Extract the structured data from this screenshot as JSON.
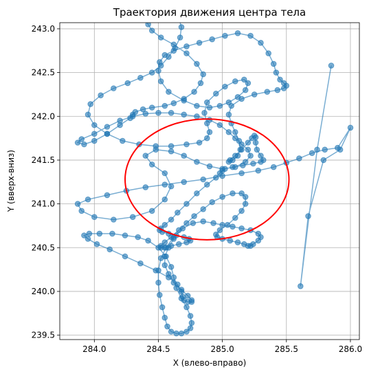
{
  "chart_data": {
    "type": "scatter",
    "title": "Траектория движения центра тела",
    "xlabel": "X (влево-вправо)",
    "ylabel": "Y (вверх-вниз)",
    "xlim": [
      283.73,
      286.07
    ],
    "ylim": [
      239.45,
      243.07
    ],
    "xticks": [
      "284.0",
      "284.5",
      "285.0",
      "285.5",
      "286.0"
    ],
    "yticks": [
      "239.5",
      "240.0",
      "240.5",
      "241.0",
      "241.5",
      "242.0",
      "242.5",
      "243.0"
    ],
    "grid": true,
    "series_color": "#1f77b4",
    "circle": {
      "center": [
        284.88,
        241.28
      ],
      "radius_x": 0.64,
      "radius_y": 0.69,
      "color": "#ff0000"
    },
    "series": [
      {
        "mode": "lines+markers",
        "x": [
          285.85,
          285.74,
          285.61,
          285.67,
          285.79,
          285.92,
          286.0,
          285.9,
          285.8,
          285.7,
          285.6,
          285.5,
          285.4,
          285.28,
          285.15,
          285.0,
          284.85,
          284.7,
          284.55,
          284.4,
          284.25,
          284.1,
          283.95,
          283.87,
          283.9,
          284.0,
          284.15,
          284.3,
          284.45,
          284.55,
          284.6,
          284.55,
          284.45,
          284.4,
          284.48,
          284.6,
          284.7,
          284.8,
          284.9,
          285.0,
          285.1,
          285.18,
          285.22,
          285.2,
          285.15,
          285.1,
          285.05,
          284.98,
          284.9,
          284.8,
          284.7,
          284.6,
          284.5,
          284.4,
          284.3,
          284.2,
          284.1,
          284.0,
          283.9,
          283.87,
          283.92,
          284.0,
          284.1,
          284.2,
          284.28,
          284.3,
          284.32,
          284.38,
          284.45,
          284.55,
          284.62,
          284.7,
          284.78,
          284.83,
          284.85,
          284.8,
          284.72,
          284.62,
          284.52,
          284.45,
          284.42,
          284.4,
          284.42,
          284.48,
          284.55,
          284.62,
          284.66,
          284.68,
          284.67,
          284.63,
          284.58,
          284.52,
          284.45,
          284.36,
          284.26,
          284.15,
          284.05,
          283.97,
          283.95,
          284.0,
          284.1,
          284.22,
          284.35,
          284.48,
          284.6,
          284.72,
          284.82,
          284.88,
          284.9,
          284.88,
          284.86,
          284.88,
          284.95,
          285.02,
          285.1,
          285.17,
          285.2,
          285.18,
          285.12,
          285.05,
          284.98,
          284.9,
          284.8,
          284.7,
          284.58,
          284.52,
          284.5,
          284.51,
          284.55,
          284.62,
          284.72,
          284.82,
          284.92,
          285.02,
          285.12,
          285.22,
          285.3,
          285.36,
          285.4,
          285.42,
          285.45,
          285.48,
          285.5,
          285.48,
          285.43,
          285.35,
          285.25,
          285.15,
          285.07,
          285.05,
          285.07,
          285.1,
          285.13,
          285.14,
          285.12,
          285.08,
          285.05,
          285.06,
          285.1,
          285.15,
          285.2,
          285.23,
          285.25,
          285.26,
          285.26,
          285.27,
          285.3,
          285.32,
          285.3,
          285.24,
          285.16,
          285.08,
          285.02,
          285.0,
          284.98,
          284.95,
          284.88,
          284.8,
          284.72,
          284.65,
          284.6,
          284.55,
          284.52,
          284.51,
          284.53,
          284.58,
          284.64,
          284.7,
          284.74,
          284.75,
          284.72,
          284.66,
          284.6,
          284.55,
          284.52,
          284.52,
          284.55,
          284.6,
          284.66,
          284.72,
          284.78,
          284.85,
          284.92,
          285.0,
          285.08,
          285.15,
          285.18,
          285.18,
          285.15,
          285.1,
          285.04,
          284.98,
          284.95,
          284.96,
          285.0,
          285.06,
          285.12,
          285.17,
          285.2,
          285.22,
          285.24,
          285.28,
          285.3,
          285.28,
          285.22,
          285.15,
          285.08,
          285.0,
          284.93,
          284.85,
          284.77,
          284.69,
          284.62,
          284.56,
          284.52,
          284.5,
          284.5,
          284.51,
          284.53,
          284.55,
          284.57,
          284.6,
          284.64,
          284.68,
          284.72,
          284.75,
          284.76,
          284.75,
          284.72,
          284.68,
          284.64,
          284.62,
          284.6,
          284.56,
          284.5,
          284.42,
          284.34,
          284.24,
          284.14,
          284.04,
          283.96,
          283.92,
          283.95,
          284.02,
          284.12,
          284.24,
          284.36,
          284.48,
          284.58,
          284.65,
          284.68,
          284.69,
          284.7,
          284.73,
          284.76,
          284.76,
          284.73,
          284.68,
          284.62,
          284.58,
          284.55,
          284.55,
          284.58,
          284.62
        ],
        "y": [
          242.58,
          241.62,
          240.06,
          240.86,
          241.5,
          241.62,
          241.87,
          241.64,
          241.62,
          241.58,
          241.52,
          241.47,
          241.42,
          241.38,
          241.35,
          241.32,
          241.28,
          241.25,
          241.22,
          241.19,
          241.15,
          241.1,
          241.05,
          241.0,
          240.92,
          240.85,
          240.82,
          240.85,
          240.92,
          241.05,
          241.2,
          241.35,
          241.45,
          241.55,
          241.62,
          241.6,
          241.55,
          241.48,
          241.43,
          241.4,
          241.42,
          241.48,
          241.55,
          241.62,
          241.68,
          241.75,
          241.82,
          241.9,
          241.96,
          242.0,
          242.02,
          242.04,
          242.04,
          242.03,
          242.0,
          241.95,
          241.88,
          241.8,
          241.74,
          241.7,
          241.68,
          241.72,
          241.8,
          241.9,
          241.98,
          242.02,
          242.05,
          242.08,
          242.1,
          242.12,
          242.15,
          242.2,
          242.28,
          242.38,
          242.48,
          242.6,
          242.72,
          242.82,
          242.9,
          242.98,
          243.05,
          243.1,
          243.14,
          243.17,
          243.18,
          243.17,
          243.12,
          243.02,
          242.9,
          242.78,
          242.68,
          242.58,
          242.5,
          242.44,
          242.38,
          242.32,
          242.24,
          242.14,
          242.02,
          241.9,
          241.8,
          241.72,
          241.68,
          241.66,
          241.66,
          241.68,
          241.7,
          241.75,
          241.82,
          241.92,
          242.04,
          242.16,
          242.26,
          242.34,
          242.4,
          242.42,
          242.38,
          242.3,
          242.22,
          242.16,
          242.12,
          242.1,
          242.12,
          242.18,
          242.28,
          242.4,
          242.52,
          242.62,
          242.7,
          242.75,
          242.8,
          242.84,
          242.88,
          242.92,
          242.95,
          242.92,
          242.84,
          242.72,
          242.6,
          242.5,
          242.42,
          242.38,
          242.35,
          242.32,
          242.3,
          242.28,
          242.25,
          242.2,
          242.12,
          242.02,
          241.92,
          241.82,
          241.72,
          241.62,
          241.55,
          241.5,
          241.48,
          241.5,
          241.55,
          241.62,
          241.7,
          241.75,
          241.78,
          241.76,
          241.7,
          241.62,
          241.55,
          241.5,
          241.48,
          241.46,
          241.44,
          241.42,
          241.4,
          241.38,
          241.35,
          241.3,
          241.22,
          241.12,
          241.0,
          240.9,
          240.82,
          240.76,
          240.72,
          240.7,
          240.68,
          240.66,
          240.64,
          240.62,
          240.6,
          240.58,
          240.56,
          240.54,
          240.52,
          240.5,
          240.5,
          240.52,
          240.56,
          240.62,
          240.7,
          240.78,
          240.86,
          240.94,
          241.02,
          241.08,
          241.12,
          241.12,
          241.08,
          241.0,
          240.92,
          240.84,
          240.76,
          240.7,
          240.65,
          240.62,
          240.6,
          240.58,
          240.56,
          240.54,
          240.52,
          240.52,
          240.54,
          240.58,
          240.62,
          240.66,
          240.7,
          240.72,
          240.74,
          240.76,
          240.78,
          240.8,
          240.78,
          240.72,
          240.62,
          240.5,
          240.38,
          240.24,
          240.1,
          239.96,
          239.82,
          239.7,
          239.6,
          239.54,
          239.52,
          239.52,
          239.54,
          239.58,
          239.64,
          239.72,
          239.82,
          239.92,
          240.04,
          240.16,
          240.28,
          240.4,
          240.5,
          240.58,
          240.62,
          240.64,
          240.66,
          240.66,
          240.66,
          240.64,
          240.6,
          240.54,
          240.48,
          240.4,
          240.32,
          240.24,
          240.16,
          240.08,
          240.0,
          239.94,
          239.9,
          239.88,
          239.88,
          239.9,
          239.95,
          240.02,
          240.1,
          240.2,
          240.3,
          240.4,
          240.5,
          240.6
        ]
      }
    ]
  }
}
